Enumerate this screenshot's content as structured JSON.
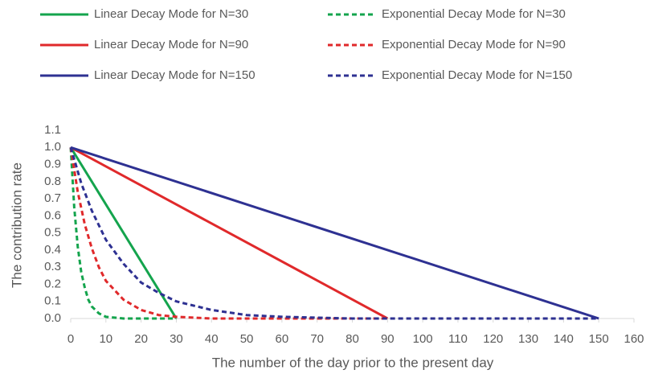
{
  "chart_data": {
    "type": "line",
    "xlabel": "The number of the day prior to the present day",
    "ylabel": "The contribution rate",
    "xlim": [
      0,
      160
    ],
    "xticks": [
      0,
      10,
      20,
      30,
      40,
      50,
      60,
      70,
      80,
      90,
      100,
      110,
      120,
      130,
      140,
      150,
      160
    ],
    "ylim": [
      0,
      1.1
    ],
    "yticks": [
      {
        "value": 0,
        "label": "0.0"
      },
      0.1,
      0.2,
      0.3,
      0.4,
      0.5,
      0.6,
      0.7,
      0.8,
      0.9,
      {
        "value": 1,
        "label": "1.0"
      },
      1.1
    ],
    "grid": false,
    "legend": "top",
    "series": [
      {
        "name": "Linear Decay Mode for N=30",
        "color": "#14a44d",
        "style": "solid",
        "x": [
          0,
          30
        ],
        "values": [
          1,
          0
        ]
      },
      {
        "name": "Exponential Decay Mode for N=30",
        "color": "#14a44d",
        "style": "dashed",
        "x": [
          0,
          1,
          2,
          3,
          4,
          5,
          6,
          8,
          10,
          15,
          20,
          30
        ],
        "values": [
          1,
          0.65,
          0.42,
          0.27,
          0.18,
          0.11,
          0.07,
          0.03,
          0.01,
          0,
          0,
          0
        ]
      },
      {
        "name": "Linear Decay Mode for N=90",
        "color": "#e0292b",
        "style": "solid",
        "x": [
          0,
          90
        ],
        "values": [
          1,
          0
        ]
      },
      {
        "name": "Exponential Decay Mode for N=90",
        "color": "#e0292b",
        "style": "dashed",
        "x": [
          0,
          2,
          4,
          6,
          8,
          10,
          15,
          20,
          25,
          30,
          40,
          50,
          60,
          90
        ],
        "values": [
          1,
          0.74,
          0.55,
          0.41,
          0.3,
          0.22,
          0.11,
          0.05,
          0.02,
          0.01,
          0,
          0,
          0,
          0
        ]
      },
      {
        "name": "Linear Decay Mode for N=150",
        "color": "#2e3192",
        "style": "solid",
        "x": [
          0,
          150
        ],
        "values": [
          1,
          0
        ]
      },
      {
        "name": "Exponential Decay Mode for N=150",
        "color": "#2e3192",
        "style": "dashed",
        "x": [
          0,
          3,
          6,
          10,
          15,
          20,
          25,
          30,
          40,
          50,
          60,
          80,
          100,
          150
        ],
        "values": [
          1,
          0.79,
          0.63,
          0.46,
          0.32,
          0.21,
          0.15,
          0.1,
          0.05,
          0.02,
          0.01,
          0,
          0,
          0
        ]
      }
    ]
  }
}
